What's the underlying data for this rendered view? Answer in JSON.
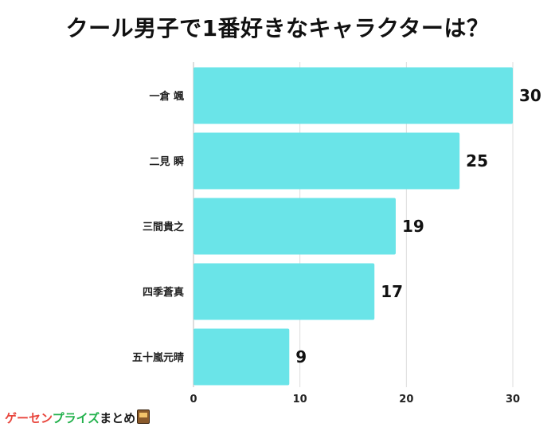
{
  "chart_data": {
    "type": "bar",
    "orientation": "horizontal",
    "title": "クール男子で1番好きなキャラクターは？",
    "categories": [
      "一倉 颯",
      "二見 瞬",
      "三間貴之",
      "四季蒼真",
      "五十嵐元晴"
    ],
    "values": [
      30,
      25,
      19,
      17,
      9
    ],
    "xlim": [
      0,
      30
    ],
    "xticks": [
      0,
      10,
      20,
      30
    ],
    "grid": true,
    "bar_color": "#6ae4e8",
    "show_value_labels": true
  },
  "logo": {
    "part1": "ゲーセン",
    "part2": "プライズ",
    "part3": "まとめ",
    "icon": "arcade-machine-icon"
  }
}
